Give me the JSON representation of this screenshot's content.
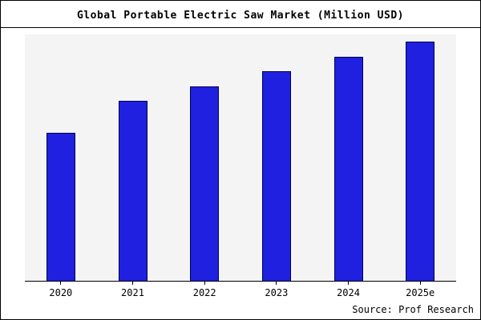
{
  "chart": {
    "title": "Global Portable Electric Saw Market (Million USD)",
    "source": "Source: Prof Research",
    "colors": {
      "bar_fill": "#2020e0",
      "bar_border": "#000050",
      "plot_background": "#f4f4f4",
      "frame": "#000000"
    }
  },
  "chart_data": {
    "type": "bar",
    "title": "Global Portable Electric Saw Market (Million USD)",
    "categories": [
      "2020",
      "2021",
      "2022",
      "2023",
      "2024",
      "2025e"
    ],
    "values": [
      60,
      73,
      79,
      85,
      91,
      97
    ],
    "xlabel": "",
    "ylabel": "",
    "ylim": [
      0,
      100
    ],
    "grid": false,
    "legend_position": "none",
    "y_axis_ticks_visible": false,
    "annotations": [
      "Source: Prof Research"
    ]
  }
}
